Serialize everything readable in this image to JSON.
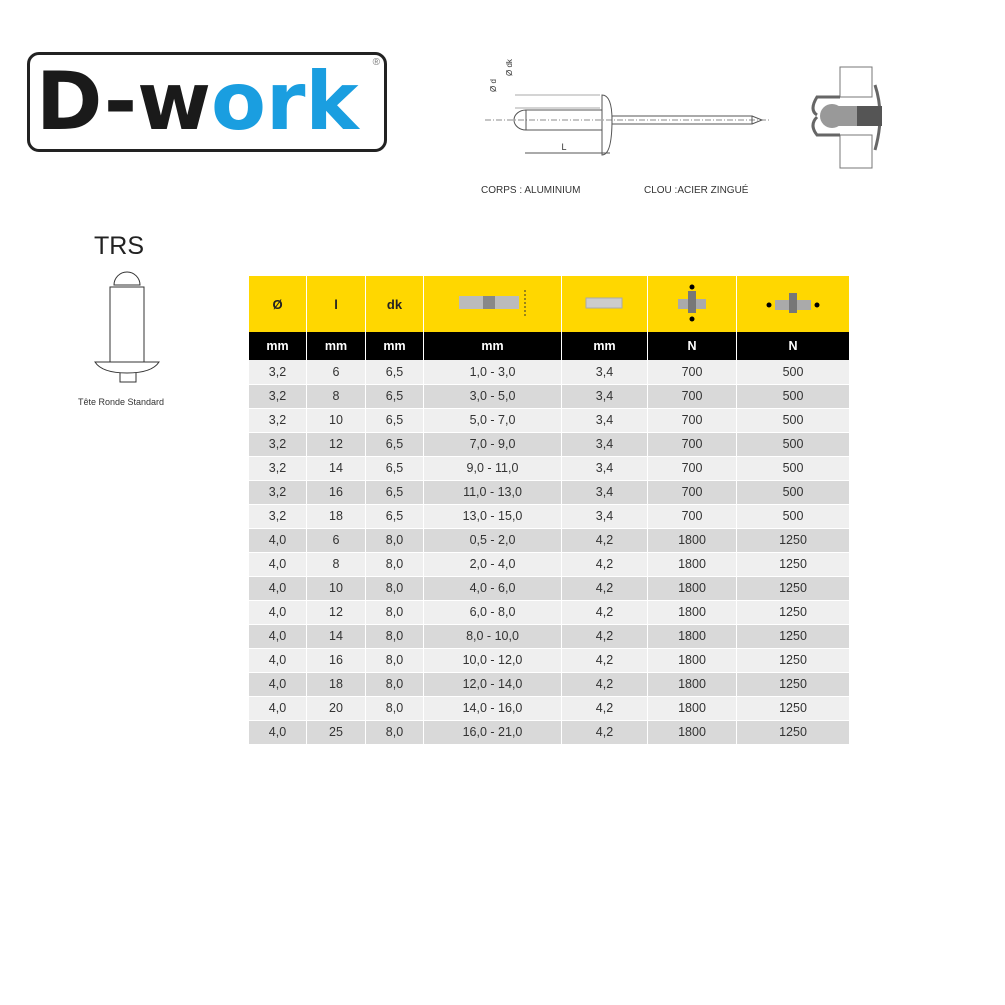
{
  "logo": {
    "text_dark": "D-w",
    "text_blue": "ork",
    "registered": "®"
  },
  "diagram": {
    "label_d": "Ø d",
    "label_dk": "Ø dk",
    "label_L": "L",
    "body_material": "CORPS : ALUMINIUM",
    "nail_material": "CLOU :ACIER ZINGUÉ"
  },
  "type": {
    "code": "TRS",
    "caption": "Tête Ronde Standard"
  },
  "colors": {
    "header_yellow": "#ffd700",
    "header_black": "#000000",
    "logo_blue": "#1a9ee0"
  },
  "table": {
    "headers": [
      "Ø",
      "l",
      "dk",
      "grip-range-icon",
      "drill-hole-icon",
      "shear-force-icon",
      "tensile-force-icon"
    ],
    "units": [
      "mm",
      "mm",
      "mm",
      "mm",
      "mm",
      "N",
      "N"
    ],
    "rows": [
      [
        "3,2",
        "6",
        "6,5",
        "1,0 - 3,0",
        "3,4",
        "700",
        "500"
      ],
      [
        "3,2",
        "8",
        "6,5",
        "3,0 - 5,0",
        "3,4",
        "700",
        "500"
      ],
      [
        "3,2",
        "10",
        "6,5",
        "5,0 - 7,0",
        "3,4",
        "700",
        "500"
      ],
      [
        "3,2",
        "12",
        "6,5",
        "7,0 - 9,0",
        "3,4",
        "700",
        "500"
      ],
      [
        "3,2",
        "14",
        "6,5",
        "9,0 - 11,0",
        "3,4",
        "700",
        "500"
      ],
      [
        "3,2",
        "16",
        "6,5",
        "11,0 - 13,0",
        "3,4",
        "700",
        "500"
      ],
      [
        "3,2",
        "18",
        "6,5",
        "13,0 - 15,0",
        "3,4",
        "700",
        "500"
      ],
      [
        "4,0",
        "6",
        "8,0",
        "0,5 - 2,0",
        "4,2",
        "1800",
        "1250"
      ],
      [
        "4,0",
        "8",
        "8,0",
        "2,0 - 4,0",
        "4,2",
        "1800",
        "1250"
      ],
      [
        "4,0",
        "10",
        "8,0",
        "4,0 - 6,0",
        "4,2",
        "1800",
        "1250"
      ],
      [
        "4,0",
        "12",
        "8,0",
        "6,0 - 8,0",
        "4,2",
        "1800",
        "1250"
      ],
      [
        "4,0",
        "14",
        "8,0",
        "8,0 - 10,0",
        "4,2",
        "1800",
        "1250"
      ],
      [
        "4,0",
        "16",
        "8,0",
        "10,0 - 12,0",
        "4,2",
        "1800",
        "1250"
      ],
      [
        "4,0",
        "18",
        "8,0",
        "12,0 - 14,0",
        "4,2",
        "1800",
        "1250"
      ],
      [
        "4,0",
        "20",
        "8,0",
        "14,0 - 16,0",
        "4,2",
        "1800",
        "1250"
      ],
      [
        "4,0",
        "25",
        "8,0",
        "16,0 - 21,0",
        "4,2",
        "1800",
        "1250"
      ]
    ]
  }
}
